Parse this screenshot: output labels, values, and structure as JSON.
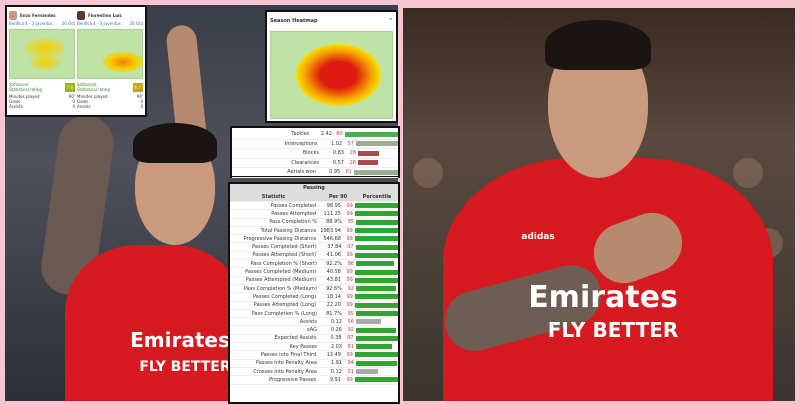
{
  "comparison_cards": [
    {
      "player": "Enzo Fernández",
      "match": "Benfica 4 - 3 Juventus",
      "date": "26 Oct",
      "rating_label_1": "Sofascore",
      "rating_label_2": "Statistical rating",
      "rating": "7.6",
      "rows": [
        [
          "Minutes played",
          "90'"
        ],
        [
          "Goals",
          "0"
        ],
        [
          "Assists",
          "0"
        ]
      ]
    },
    {
      "player": "Florentino Luís",
      "match": "Benfica 4 - 3 Juventus",
      "date": "26 Oct",
      "rating_label_1": "Sofascore",
      "rating_label_2": "Statistical rating",
      "rating": "6.7",
      "rows": [
        [
          "Minutes played",
          "90'"
        ],
        [
          "Goals",
          "0"
        ],
        [
          "Assists",
          "0"
        ]
      ]
    }
  ],
  "season_heatmap": {
    "title": "Season Heatmap"
  },
  "defense_stats": [
    {
      "name": "Tackles",
      "per90": "2.42",
      "pct": 80,
      "color": "#4caf50"
    },
    {
      "name": "Interceptions",
      "per90": "1.02",
      "pct": 57,
      "color": "#9aae94"
    },
    {
      "name": "Blocks",
      "per90": "0.83",
      "pct": 28,
      "color": "#a94b4b"
    },
    {
      "name": "Clearances",
      "per90": "0.57",
      "pct": 26,
      "color": "#a94b4b"
    },
    {
      "name": "Aerials won",
      "per90": "0.95",
      "pct": 61,
      "color": "#9aae94"
    }
  ],
  "passing": {
    "title": "Passing",
    "headers": [
      "Statistic",
      "Per 90",
      "Percentile"
    ],
    "rows": [
      {
        "name": "Passes Completed",
        "per90": "98.95",
        "pct": 99
      },
      {
        "name": "Passes Attempted",
        "per90": "111.25",
        "pct": 99
      },
      {
        "name": "Pass Completion %",
        "per90": "88.9%",
        "pct": 95
      },
      {
        "name": "Total Passing Distance",
        "per90": "1983.94",
        "pct": 99
      },
      {
        "name": "Progressive Passing Distance",
        "per90": "546.68",
        "pct": 99
      },
      {
        "name": "Passes Completed (Short)",
        "per90": "37.84",
        "pct": 97
      },
      {
        "name": "Passes Attempted (Short)",
        "per90": "41.06",
        "pct": 99
      },
      {
        "name": "Pass Completion % (Short)",
        "per90": "92.2%",
        "pct": 86
      },
      {
        "name": "Passes Completed (Medium)",
        "per90": "40.58",
        "pct": 99
      },
      {
        "name": "Passes Attempted (Medium)",
        "per90": "43.81",
        "pct": 99
      },
      {
        "name": "Pass Completion % (Medium)",
        "per90": "92.6%",
        "pct": 92
      },
      {
        "name": "Passes Completed (Long)",
        "per90": "18.14",
        "pct": 99
      },
      {
        "name": "Passes Attempted (Long)",
        "per90": "22.20",
        "pct": 99
      },
      {
        "name": "Pass Completion % (Long)",
        "per90": "81.7%",
        "pct": 95
      },
      {
        "name": "Assists",
        "per90": "0.12",
        "pct": 56
      },
      {
        "name": "xAG",
        "per90": "0.26",
        "pct": 92
      },
      {
        "name": "Expected Assists",
        "per90": "0.38",
        "pct": 97
      },
      {
        "name": "Key Passes",
        "per90": "2.03",
        "pct": 81
      },
      {
        "name": "Passes into Final Third",
        "per90": "13.49",
        "pct": 99
      },
      {
        "name": "Passes into Penalty Area",
        "per90": "1.91",
        "pct": 94
      },
      {
        "name": "Crosses into Penalty Area",
        "per90": "0.12",
        "pct": 51
      },
      {
        "name": "Progressive Passes",
        "per90": "9.91",
        "pct": 99
      }
    ]
  },
  "shirt_sponsor": {
    "line1": "Emirates",
    "line2": "FLY BETTER",
    "brand": "adidas"
  },
  "colors": {
    "benfica_red": "#d71920",
    "frame_pink": "#f7c5d2",
    "elite_green": "#33a532"
  }
}
